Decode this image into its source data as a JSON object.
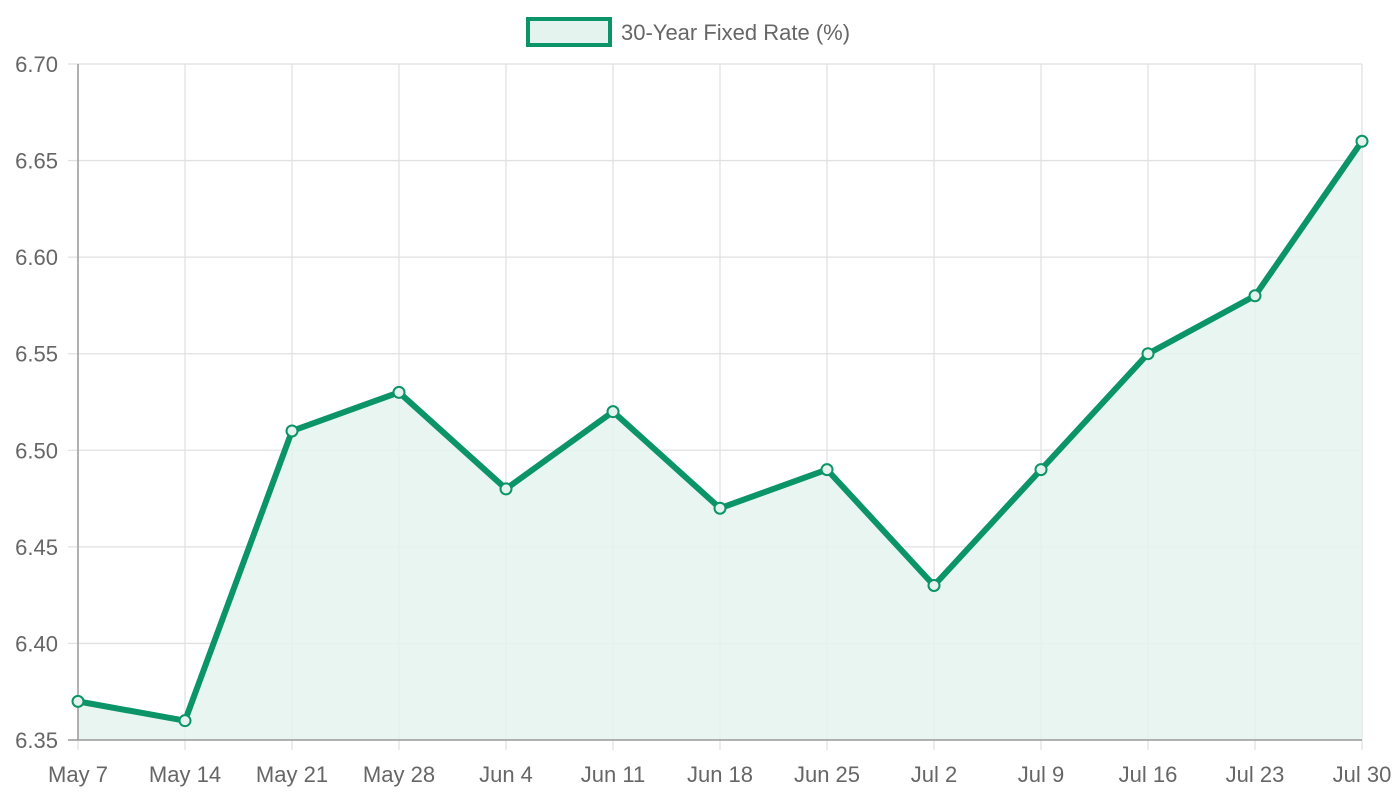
{
  "legend": {
    "label": "30-Year Fixed Rate (%)"
  },
  "colors": {
    "line": "#0a9467",
    "fill": "#e4f3ed",
    "grid": "#e1e1e1",
    "axis": "#9a9a9a",
    "text": "#666666"
  },
  "chart_data": {
    "type": "line",
    "categories": [
      "May 7",
      "May 14",
      "May 21",
      "May 28",
      "Jun 4",
      "Jun 11",
      "Jun 18",
      "Jun 25",
      "Jul 2",
      "Jul 9",
      "Jul 16",
      "Jul 23",
      "Jul 30"
    ],
    "series": [
      {
        "name": "30-Year Fixed Rate (%)",
        "values": [
          6.37,
          6.36,
          6.51,
          6.53,
          6.48,
          6.52,
          6.47,
          6.49,
          6.43,
          6.49,
          6.55,
          6.58,
          6.66
        ],
        "fill": true
      }
    ],
    "ylim": [
      6.35,
      6.7
    ],
    "yticks": [
      "6.35",
      "6.40",
      "6.45",
      "6.50",
      "6.55",
      "6.60",
      "6.65",
      "6.70"
    ],
    "xlabel": "",
    "ylabel": "",
    "grid": true,
    "legend_position": "top"
  }
}
